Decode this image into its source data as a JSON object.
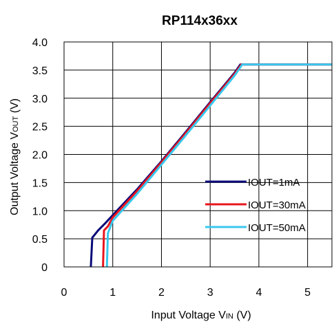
{
  "chart_data": {
    "type": "line",
    "title": "RP114x36xx",
    "xlabel": {
      "main": "Input Voltage V",
      "sub": "IN",
      "unit": " (V)"
    },
    "ylabel": {
      "main": "Output Voltage V",
      "sub": "OUT",
      "unit": " (V)"
    },
    "xlim": [
      0,
      5.5
    ],
    "ylim": [
      0,
      4.0
    ],
    "x_ticks": [
      0,
      1,
      2,
      3,
      4,
      5
    ],
    "x_tick_labels": [
      "0",
      "1",
      "2",
      "3",
      "4",
      "5"
    ],
    "y_ticks": [
      0,
      0.5,
      1.0,
      1.5,
      2.0,
      2.5,
      3.0,
      3.5,
      4.0
    ],
    "y_tick_labels": [
      "0",
      "0.5",
      "1.0",
      "1.5",
      "2.0",
      "2.5",
      "3.0",
      "3.5",
      "4.0"
    ],
    "grid": true,
    "legend_placement": "center-right",
    "series": [
      {
        "name": "IOUT=1mA",
        "color": "#0a0a78",
        "points": [
          [
            0.55,
            0
          ],
          [
            0.58,
            0.52
          ],
          [
            0.7,
            0.65
          ],
          [
            0.85,
            0.78
          ],
          [
            1.0,
            0.92
          ],
          [
            1.5,
            1.38
          ],
          [
            2.0,
            1.88
          ],
          [
            2.5,
            2.4
          ],
          [
            3.0,
            2.93
          ],
          [
            3.5,
            3.45
          ],
          [
            3.62,
            3.6
          ],
          [
            5.5,
            3.6
          ]
        ]
      },
      {
        "name": "IOUT=30mA",
        "color": "#e8141e",
        "points": [
          [
            0.8,
            0
          ],
          [
            0.82,
            0.65
          ],
          [
            0.9,
            0.72
          ],
          [
            1.0,
            0.88
          ],
          [
            1.5,
            1.35
          ],
          [
            2.0,
            1.86
          ],
          [
            2.5,
            2.38
          ],
          [
            3.0,
            2.91
          ],
          [
            3.5,
            3.43
          ],
          [
            3.64,
            3.6
          ],
          [
            5.5,
            3.6
          ]
        ]
      },
      {
        "name": "IOUT=50mA",
        "color": "#38c8ee",
        "points": [
          [
            0.88,
            0
          ],
          [
            0.9,
            0.6
          ],
          [
            1.0,
            0.82
          ],
          [
            1.5,
            1.3
          ],
          [
            2.0,
            1.82
          ],
          [
            2.5,
            2.34
          ],
          [
            3.0,
            2.87
          ],
          [
            3.5,
            3.4
          ],
          [
            3.66,
            3.6
          ],
          [
            5.5,
            3.6
          ]
        ]
      }
    ]
  }
}
